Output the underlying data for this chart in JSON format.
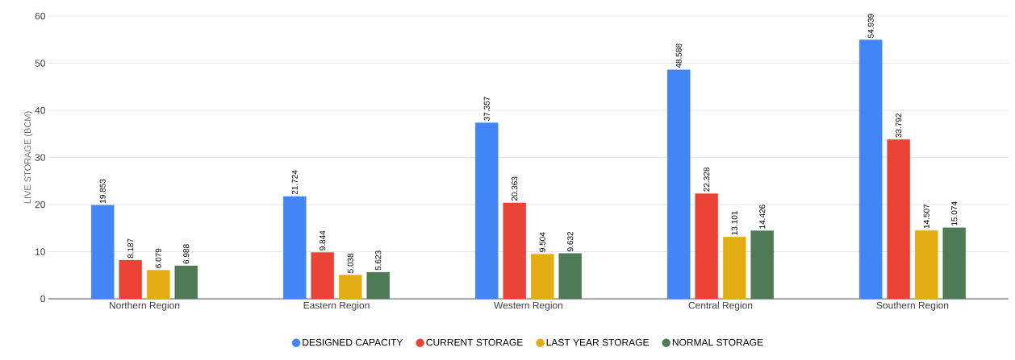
{
  "chart_data": {
    "type": "bar",
    "ylabel": "LIVE STORAGE (BCM)",
    "categories": [
      "Northern Region",
      "Eastern Region",
      "Western Region",
      "Central Region",
      "Southern Region"
    ],
    "series": [
      {
        "name": "DESIGNED CAPACITY",
        "color": "#4285f4",
        "values": [
          19.853,
          21.724,
          37.357,
          48.588,
          54.939
        ]
      },
      {
        "name": "CURRENT STORAGE",
        "color": "#ea4335",
        "values": [
          8.187,
          9.844,
          20.363,
          22.328,
          33.792
        ]
      },
      {
        "name": "LAST YEAR STORAGE",
        "color": "#e3ac13",
        "values": [
          6.079,
          5.038,
          9.504,
          13.101,
          14.507
        ]
      },
      {
        "name": "NORMAL STORAGE",
        "color": "#4e7a57",
        "values": [
          6.988,
          5.623,
          9.632,
          14.426,
          15.074
        ]
      }
    ],
    "ylim": [
      0,
      60
    ],
    "yticks": [
      0,
      10,
      20,
      30,
      40,
      50,
      60
    ],
    "grid": "y",
    "legend": "bottom",
    "data_labels": true
  }
}
